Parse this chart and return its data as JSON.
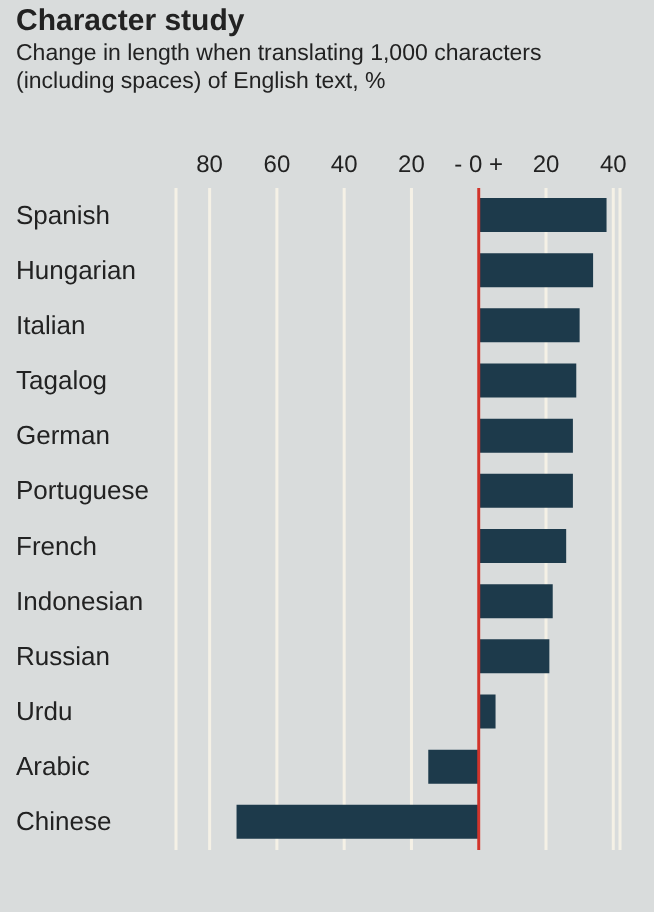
{
  "chart_data": {
    "type": "bar",
    "orientation": "horizontal",
    "title": "Character study",
    "subtitle": "Change in length when translating 1,000 characters (including spaces) of English text, %",
    "categories": [
      "Spanish",
      "Hungarian",
      "Italian",
      "Tagalog",
      "German",
      "Portuguese",
      "French",
      "Indonesian",
      "Russian",
      "Urdu",
      "Arabic",
      "Chinese"
    ],
    "values": [
      38,
      34,
      30,
      29,
      28,
      28,
      26,
      22,
      21,
      5,
      -15,
      -72
    ],
    "color": "#1d3a4b",
    "xlim": [
      -90,
      42
    ],
    "xticks": [
      {
        "value": -80,
        "label": "80"
      },
      {
        "value": -60,
        "label": "60"
      },
      {
        "value": -40,
        "label": "40"
      },
      {
        "value": -20,
        "label": "20"
      },
      {
        "value": 0,
        "label": "- 0 +"
      },
      {
        "value": 20,
        "label": "20"
      },
      {
        "value": 40,
        "label": "40"
      }
    ],
    "ref_lines": [
      {
        "axis": "x",
        "value": 0,
        "color": "#d0342c"
      }
    ],
    "grid": "x"
  }
}
